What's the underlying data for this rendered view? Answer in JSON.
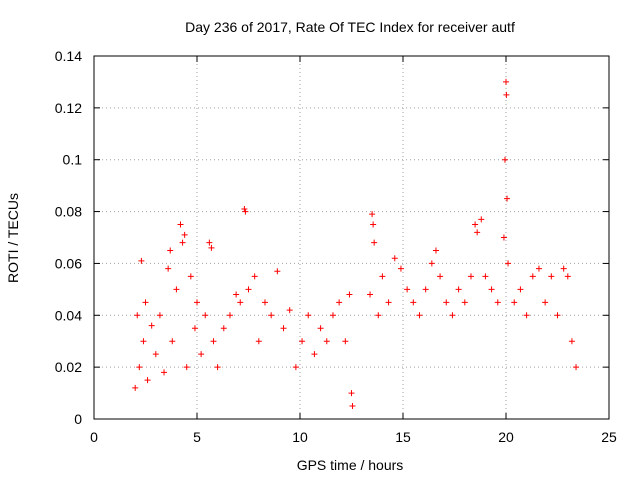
{
  "chart_data": {
    "type": "scatter",
    "title": "Day 236 of 2017, Rate Of TEC Index for receiver autf",
    "xlabel": "GPS time / hours",
    "ylabel": "ROTI / TECUs",
    "xlim": [
      0,
      25
    ],
    "ylim": [
      0,
      0.14
    ],
    "x_ticks": [
      "0",
      "5",
      "10",
      "15",
      "20",
      "25"
    ],
    "y_ticks": [
      "0",
      "0.02",
      "0.04",
      "0.06",
      "0.08",
      "0.1",
      "0.12",
      "0.14"
    ],
    "x_tick_values": [
      0,
      5,
      10,
      15,
      20,
      25
    ],
    "y_tick_values": [
      0,
      0.02,
      0.04,
      0.06,
      0.08,
      0.1,
      0.12,
      0.14
    ],
    "grid": true,
    "marker": "+",
    "marker_color": "#ff0000",
    "series": [
      {
        "name": "",
        "points": [
          [
            2.0,
            0.012
          ],
          [
            2.1,
            0.04
          ],
          [
            2.2,
            0.02
          ],
          [
            2.3,
            0.061
          ],
          [
            2.4,
            0.03
          ],
          [
            2.5,
            0.045
          ],
          [
            2.6,
            0.015
          ],
          [
            2.8,
            0.036
          ],
          [
            3.0,
            0.025
          ],
          [
            3.2,
            0.04
          ],
          [
            3.4,
            0.018
          ],
          [
            3.6,
            0.058
          ],
          [
            3.7,
            0.065
          ],
          [
            3.8,
            0.03
          ],
          [
            4.0,
            0.05
          ],
          [
            4.2,
            0.075
          ],
          [
            4.3,
            0.068
          ],
          [
            4.4,
            0.071
          ],
          [
            4.5,
            0.02
          ],
          [
            4.7,
            0.055
          ],
          [
            4.9,
            0.035
          ],
          [
            5.0,
            0.045
          ],
          [
            5.2,
            0.025
          ],
          [
            5.4,
            0.04
          ],
          [
            5.6,
            0.068
          ],
          [
            5.7,
            0.066
          ],
          [
            5.8,
            0.03
          ],
          [
            6.0,
            0.02
          ],
          [
            6.3,
            0.035
          ],
          [
            6.6,
            0.04
          ],
          [
            6.9,
            0.048
          ],
          [
            7.1,
            0.045
          ],
          [
            7.3,
            0.081
          ],
          [
            7.35,
            0.08
          ],
          [
            7.5,
            0.05
          ],
          [
            7.8,
            0.055
          ],
          [
            8.0,
            0.03
          ],
          [
            8.3,
            0.045
          ],
          [
            8.6,
            0.04
          ],
          [
            8.9,
            0.057
          ],
          [
            9.2,
            0.035
          ],
          [
            9.5,
            0.042
          ],
          [
            9.8,
            0.02
          ],
          [
            10.1,
            0.03
          ],
          [
            10.4,
            0.04
          ],
          [
            10.7,
            0.025
          ],
          [
            11.0,
            0.035
          ],
          [
            11.3,
            0.03
          ],
          [
            11.6,
            0.04
          ],
          [
            11.9,
            0.045
          ],
          [
            12.2,
            0.03
          ],
          [
            12.4,
            0.048
          ],
          [
            12.5,
            0.01
          ],
          [
            12.55,
            0.005
          ],
          [
            13.4,
            0.048
          ],
          [
            13.5,
            0.079
          ],
          [
            13.55,
            0.075
          ],
          [
            13.6,
            0.068
          ],
          [
            13.8,
            0.04
          ],
          [
            14.0,
            0.055
          ],
          [
            14.3,
            0.045
          ],
          [
            14.6,
            0.062
          ],
          [
            14.9,
            0.058
          ],
          [
            15.2,
            0.05
          ],
          [
            15.5,
            0.045
          ],
          [
            15.8,
            0.04
          ],
          [
            16.1,
            0.05
          ],
          [
            16.4,
            0.06
          ],
          [
            16.6,
            0.065
          ],
          [
            16.8,
            0.055
          ],
          [
            17.1,
            0.045
          ],
          [
            17.4,
            0.04
          ],
          [
            17.7,
            0.05
          ],
          [
            18.0,
            0.045
          ],
          [
            18.3,
            0.055
          ],
          [
            18.5,
            0.075
          ],
          [
            18.6,
            0.072
          ],
          [
            18.8,
            0.077
          ],
          [
            19.0,
            0.055
          ],
          [
            19.3,
            0.05
          ],
          [
            19.6,
            0.045
          ],
          [
            19.9,
            0.07
          ],
          [
            19.95,
            0.1
          ],
          [
            20.0,
            0.13
          ],
          [
            20.02,
            0.125
          ],
          [
            20.05,
            0.085
          ],
          [
            20.1,
            0.06
          ],
          [
            20.4,
            0.045
          ],
          [
            20.7,
            0.05
          ],
          [
            21.0,
            0.04
          ],
          [
            21.3,
            0.055
          ],
          [
            21.6,
            0.058
          ],
          [
            21.9,
            0.045
          ],
          [
            22.2,
            0.055
          ],
          [
            22.5,
            0.04
          ],
          [
            22.8,
            0.058
          ],
          [
            23.0,
            0.055
          ],
          [
            23.2,
            0.03
          ],
          [
            23.4,
            0.02
          ]
        ]
      }
    ]
  }
}
